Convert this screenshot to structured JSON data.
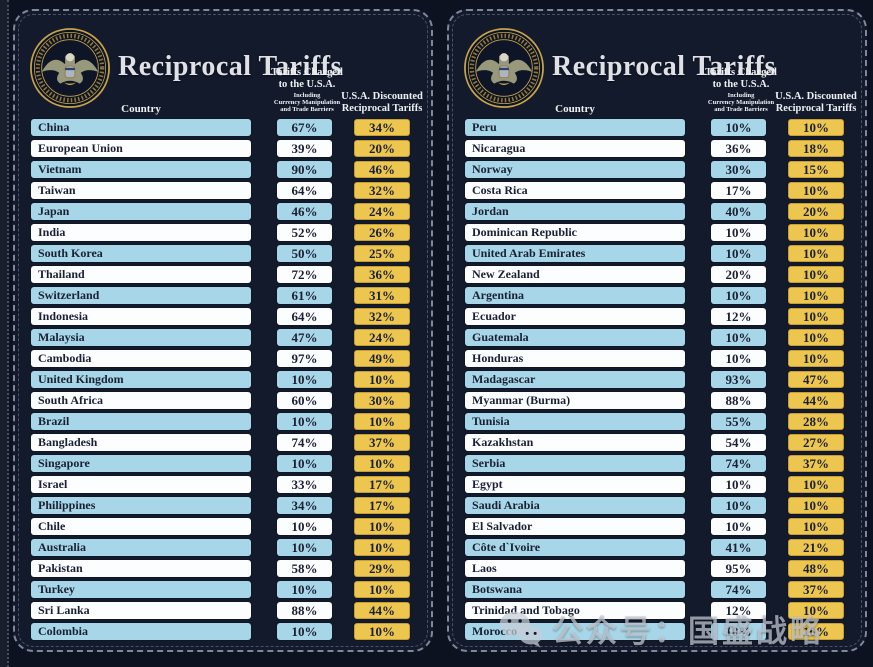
{
  "header": {
    "title": "Reciprocal Tariffs",
    "col_country": "Country",
    "charged_l1": "Tariffs Charged",
    "charged_l2": "to the U.S.A.",
    "charged_sub1": "Including",
    "charged_sub2": "Currency Manipulation",
    "charged_sub3": "and Trade Barriers",
    "disc_l1": "U.S.A. Discounted",
    "disc_l2": "Reciprocal Tariffs"
  },
  "watermark": {
    "text": "公众号：国盛战略",
    "icon": "wechat-logo"
  },
  "colors": {
    "background": "#0c1220",
    "panel": "#131a2c",
    "row_blue": "#a6d6e7",
    "row_white": "#fcfdfe",
    "gold": "#edc64f",
    "ink": "#1a2033",
    "dash": "#949cae",
    "title": "#dfe1e7"
  },
  "chart_data": [
    {
      "type": "table",
      "title": "Reciprocal Tariffs",
      "columns": [
        "Country",
        "Tariffs Charged to the U.S.A. Including Currency Manipulation and Trade Barriers",
        "U.S.A. Discounted Reciprocal Tariffs"
      ],
      "rows": [
        [
          "China",
          "67%",
          "34%"
        ],
        [
          "European Union",
          "39%",
          "20%"
        ],
        [
          "Vietnam",
          "90%",
          "46%"
        ],
        [
          "Taiwan",
          "64%",
          "32%"
        ],
        [
          "Japan",
          "46%",
          "24%"
        ],
        [
          "India",
          "52%",
          "26%"
        ],
        [
          "South Korea",
          "50%",
          "25%"
        ],
        [
          "Thailand",
          "72%",
          "36%"
        ],
        [
          "Switzerland",
          "61%",
          "31%"
        ],
        [
          "Indonesia",
          "64%",
          "32%"
        ],
        [
          "Malaysia",
          "47%",
          "24%"
        ],
        [
          "Cambodia",
          "97%",
          "49%"
        ],
        [
          "United Kingdom",
          "10%",
          "10%"
        ],
        [
          "South Africa",
          "60%",
          "30%"
        ],
        [
          "Brazil",
          "10%",
          "10%"
        ],
        [
          "Bangladesh",
          "74%",
          "37%"
        ],
        [
          "Singapore",
          "10%",
          "10%"
        ],
        [
          "Israel",
          "33%",
          "17%"
        ],
        [
          "Philippines",
          "34%",
          "17%"
        ],
        [
          "Chile",
          "10%",
          "10%"
        ],
        [
          "Australia",
          "10%",
          "10%"
        ],
        [
          "Pakistan",
          "58%",
          "29%"
        ],
        [
          "Turkey",
          "10%",
          "10%"
        ],
        [
          "Sri Lanka",
          "88%",
          "44%"
        ],
        [
          "Colombia",
          "10%",
          "10%"
        ]
      ]
    },
    {
      "type": "table",
      "title": "Reciprocal Tariffs",
      "columns": [
        "Country",
        "Tariffs Charged to the U.S.A. Including Currency Manipulation and Trade Barriers",
        "U.S.A. Discounted Reciprocal Tariffs"
      ],
      "rows": [
        [
          "Peru",
          "10%",
          "10%"
        ],
        [
          "Nicaragua",
          "36%",
          "18%"
        ],
        [
          "Norway",
          "30%",
          "15%"
        ],
        [
          "Costa Rica",
          "17%",
          "10%"
        ],
        [
          "Jordan",
          "40%",
          "20%"
        ],
        [
          "Dominican Republic",
          "10%",
          "10%"
        ],
        [
          "United Arab Emirates",
          "10%",
          "10%"
        ],
        [
          "New Zealand",
          "20%",
          "10%"
        ],
        [
          "Argentina",
          "10%",
          "10%"
        ],
        [
          "Ecuador",
          "12%",
          "10%"
        ],
        [
          "Guatemala",
          "10%",
          "10%"
        ],
        [
          "Honduras",
          "10%",
          "10%"
        ],
        [
          "Madagascar",
          "93%",
          "47%"
        ],
        [
          "Myanmar (Burma)",
          "88%",
          "44%"
        ],
        [
          "Tunisia",
          "55%",
          "28%"
        ],
        [
          "Kazakhstan",
          "54%",
          "27%"
        ],
        [
          "Serbia",
          "74%",
          "37%"
        ],
        [
          "Egypt",
          "10%",
          "10%"
        ],
        [
          "Saudi Arabia",
          "10%",
          "10%"
        ],
        [
          "El Salvador",
          "10%",
          "10%"
        ],
        [
          "Côte d`Ivoire",
          "41%",
          "21%"
        ],
        [
          "Laos",
          "95%",
          "48%"
        ],
        [
          "Botswana",
          "74%",
          "37%"
        ],
        [
          "Trinidad and Tobago",
          "12%",
          "10%"
        ],
        [
          "Morocco",
          "10%",
          "10%"
        ]
      ]
    }
  ]
}
